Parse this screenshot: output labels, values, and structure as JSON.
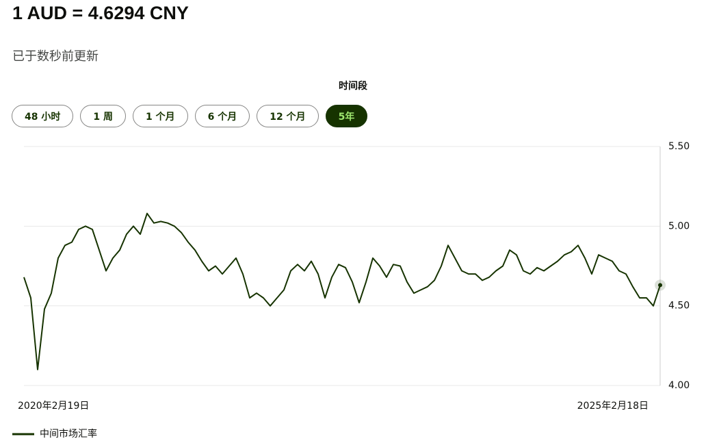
{
  "header": {
    "title": "1 AUD = 4.6294 CNY",
    "updated": "已于数秒前更新"
  },
  "period": {
    "label": "时间段",
    "options": [
      "48 小时",
      "1 周",
      "1 个月",
      "6 个月",
      "12 个月",
      "5年"
    ],
    "selected": 5
  },
  "chart_data": {
    "type": "line",
    "color": "#163300",
    "grid": true,
    "categories": [
      "2020年2月19日",
      null,
      null,
      null,
      null,
      null,
      null,
      null,
      null,
      null,
      null,
      null,
      null,
      null,
      null,
      null,
      null,
      null,
      null,
      null,
      null,
      null,
      null,
      null,
      null,
      null,
      null,
      null,
      null,
      null,
      null,
      null,
      null,
      null,
      null,
      null,
      null,
      null,
      null,
      null,
      null,
      null,
      null,
      null,
      null,
      null,
      null,
      null,
      null,
      null,
      null,
      null,
      null,
      null,
      null,
      null,
      null,
      null,
      null,
      null,
      null,
      null,
      null,
      null,
      null,
      null,
      null,
      null,
      null,
      null,
      null,
      null,
      null,
      null,
      null,
      null,
      null,
      null,
      null,
      null,
      null,
      null,
      null,
      null,
      null,
      null,
      null,
      null,
      null,
      null,
      null,
      null,
      null,
      "2025年2月18日"
    ],
    "series": [
      {
        "name": "中间市场汇率",
        "color": "#163300",
        "values": [
          4.68,
          4.55,
          4.1,
          4.48,
          4.58,
          4.8,
          4.88,
          4.9,
          4.98,
          5.0,
          4.98,
          4.85,
          4.72,
          4.8,
          4.85,
          4.95,
          5.0,
          4.95,
          5.08,
          5.02,
          5.03,
          5.02,
          5.0,
          4.96,
          4.9,
          4.85,
          4.78,
          4.72,
          4.75,
          4.7,
          4.75,
          4.8,
          4.7,
          4.55,
          4.58,
          4.55,
          4.5,
          4.55,
          4.6,
          4.72,
          4.76,
          4.72,
          4.78,
          4.7,
          4.55,
          4.68,
          4.76,
          4.74,
          4.65,
          4.52,
          4.65,
          4.8,
          4.75,
          4.68,
          4.76,
          4.75,
          4.65,
          4.58,
          4.6,
          4.62,
          4.66,
          4.75,
          4.88,
          4.8,
          4.72,
          4.7,
          4.7,
          4.66,
          4.68,
          4.72,
          4.75,
          4.85,
          4.82,
          4.72,
          4.7,
          4.74,
          4.72,
          4.75,
          4.78,
          4.82,
          4.84,
          4.88,
          4.8,
          4.7,
          4.82,
          4.8,
          4.78,
          4.72,
          4.7,
          4.62,
          4.55,
          4.55,
          4.5,
          4.63
        ]
      }
    ],
    "ylim": [
      4.0,
      5.5
    ],
    "yticks": [
      {
        "value": 4.0,
        "label": "4.00"
      },
      {
        "value": 4.5,
        "label": "4.50"
      },
      {
        "value": 5.0,
        "label": "5.00"
      },
      {
        "value": 5.5,
        "label": "5.50"
      }
    ]
  }
}
